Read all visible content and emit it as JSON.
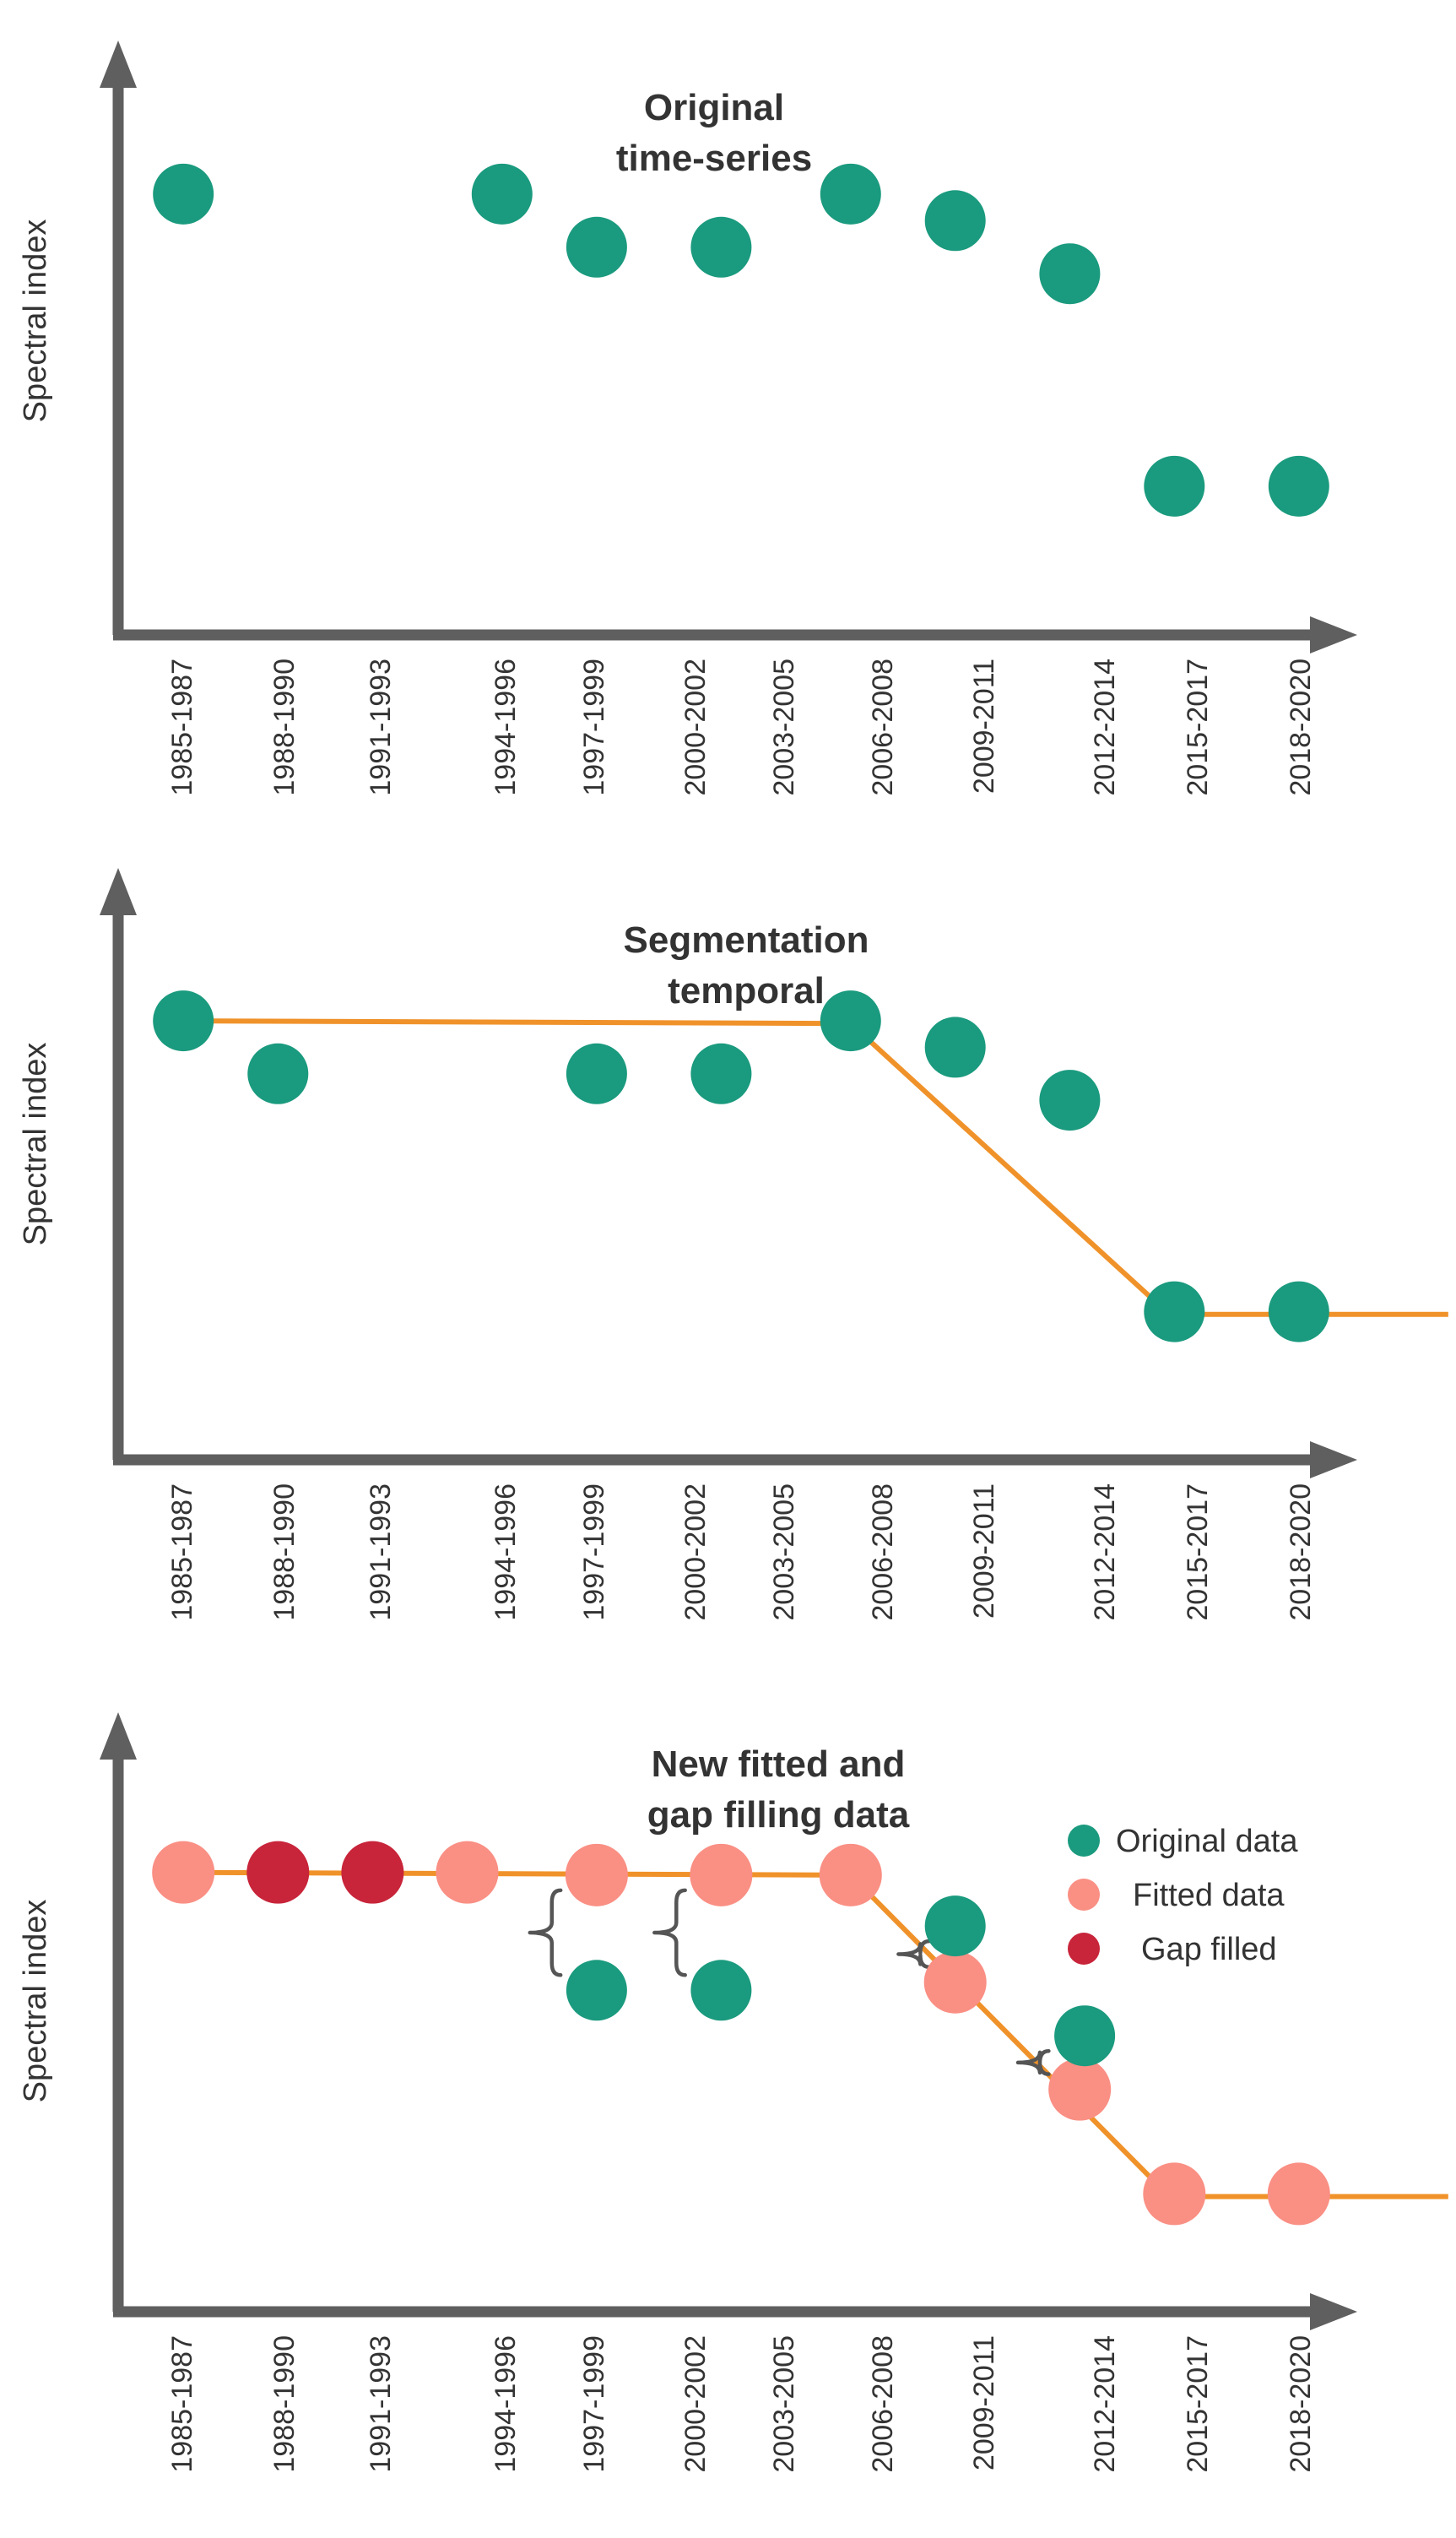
{
  "colors": {
    "original": "#1a9a7e",
    "fitted": "#fa8f84",
    "gap": "#c8243a",
    "line": "#f0922a",
    "axis": "#5f5f5f",
    "text": "#333333"
  },
  "chart_data": [
    {
      "type": "scatter",
      "title": [
        "Original",
        "time-series"
      ],
      "ylabel": "Spectral index",
      "xlabel": "",
      "categories": [
        "1985-1987",
        "1988-1990",
        "1991-1993",
        "1994-1996",
        "1997-1999",
        "2000-2002",
        "2003-2005",
        "2006-2008",
        "2009-2011",
        "2012-2014",
        "2015-2017",
        "2018-2020"
      ],
      "ylim": [
        0,
        11
      ],
      "series": [
        {
          "role": "original",
          "points": [
            {
              "x": 0.4,
              "y": 8.3
            },
            {
              "x": 3.6,
              "y": 8.3
            },
            {
              "x": 4.55,
              "y": 7.3
            },
            {
              "x": 5.8,
              "y": 7.3
            },
            {
              "x": 7.1,
              "y": 8.3
            },
            {
              "x": 8.15,
              "y": 7.8
            },
            {
              "x": 9.3,
              "y": 6.8
            },
            {
              "x": 10.35,
              "y": 2.8
            },
            {
              "x": 11.6,
              "y": 2.8
            }
          ]
        }
      ],
      "legend": null
    },
    {
      "type": "scatter",
      "title": [
        "Segmentation",
        "temporal"
      ],
      "ylabel": "Spectral index",
      "xlabel": "",
      "categories": [
        "1985-1987",
        "1988-1990",
        "1991-1993",
        "1994-1996",
        "1997-1999",
        "2000-2002",
        "2003-2005",
        "2006-2008",
        "2009-2011",
        "2012-2014",
        "2015-2017",
        "2018-2020"
      ],
      "ylim": [
        0,
        11
      ],
      "series": [
        {
          "role": "original",
          "points": [
            {
              "x": 0.4,
              "y": 8.3
            },
            {
              "x": 1.35,
              "y": 7.3
            },
            {
              "x": 4.55,
              "y": 7.3
            },
            {
              "x": 5.8,
              "y": 7.3
            },
            {
              "x": 7.1,
              "y": 8.3
            },
            {
              "x": 8.15,
              "y": 7.8
            },
            {
              "x": 9.3,
              "y": 6.8
            },
            {
              "x": 10.35,
              "y": 2.8
            },
            {
              "x": 11.6,
              "y": 2.8
            }
          ]
        }
      ],
      "segments": [
        {
          "x": 0.4,
          "y": 8.3
        },
        {
          "x": 7.1,
          "y": 8.25
        },
        {
          "x": 10.3,
          "y": 2.75
        },
        {
          "x": 13.1,
          "y": 2.75
        }
      ],
      "legend": null
    },
    {
      "type": "scatter",
      "title": [
        "New fitted and",
        "gap filling data"
      ],
      "ylabel": "Spectral index",
      "xlabel": "",
      "categories": [
        "1985-1987",
        "1988-1990",
        "1991-1993",
        "1994-1996",
        "1997-1999",
        "2000-2002",
        "2003-2005",
        "2006-2008",
        "2009-2011",
        "2012-2014",
        "2015-2017",
        "2018-2020"
      ],
      "ylim": [
        0,
        11
      ],
      "series": [
        {
          "role": "fitted",
          "points": [
            {
              "x": 0.4,
              "y": 8.2
            },
            {
              "x": 3.25,
              "y": 8.2
            },
            {
              "x": 4.55,
              "y": 8.15
            },
            {
              "x": 5.8,
              "y": 8.15
            },
            {
              "x": 7.1,
              "y": 8.15
            },
            {
              "x": 8.15,
              "y": 6.15
            },
            {
              "x": 9.4,
              "y": 4.15
            },
            {
              "x": 10.35,
              "y": 2.2
            },
            {
              "x": 11.6,
              "y": 2.2
            }
          ]
        },
        {
          "role": "gap",
          "points": [
            {
              "x": 1.35,
              "y": 8.2
            },
            {
              "x": 2.3,
              "y": 8.2
            }
          ]
        },
        {
          "role": "original",
          "points": [
            {
              "x": 4.55,
              "y": 6.0
            },
            {
              "x": 5.8,
              "y": 6.0
            },
            {
              "x": 8.15,
              "y": 7.2
            },
            {
              "x": 9.45,
              "y": 5.15
            }
          ]
        }
      ],
      "segments": [
        {
          "x": 0.4,
          "y": 8.2
        },
        {
          "x": 7.1,
          "y": 8.15
        },
        {
          "x": 10.3,
          "y": 2.15
        },
        {
          "x": 13.1,
          "y": 2.15
        }
      ],
      "braces": [
        {
          "x": 4.1,
          "y1": 8.15,
          "y2": 6.0
        },
        {
          "x": 5.35,
          "y1": 8.15,
          "y2": 6.0
        },
        {
          "x": 7.8,
          "y1": 7.2,
          "y2": 6.15
        },
        {
          "x": 9.0,
          "y1": 5.15,
          "y2": 4.15
        }
      ],
      "legend": {
        "placement": "top-right",
        "entries": [
          {
            "role": "original",
            "label": "Original data"
          },
          {
            "role": "fitted",
            "label": "Fitted data"
          },
          {
            "role": "gap",
            "label": "Gap filled"
          }
        ]
      }
    }
  ]
}
